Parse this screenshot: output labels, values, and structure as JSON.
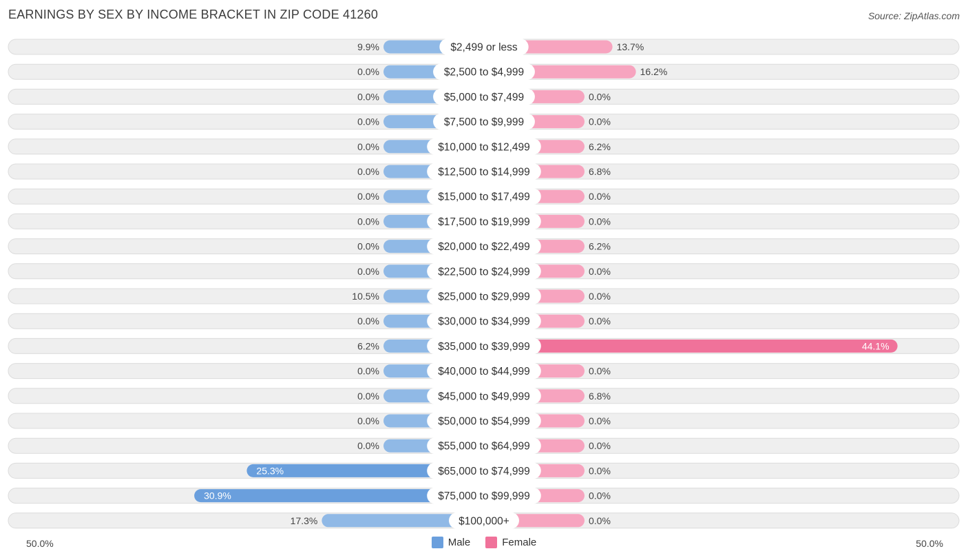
{
  "title": "EARNINGS BY SEX BY INCOME BRACKET IN ZIP CODE 41260",
  "source": "Source: ZipAtlas.com",
  "axis": {
    "left_label": "50.0%",
    "right_label": "50.0%",
    "max_percent": 50
  },
  "legend": {
    "male": "Male",
    "female": "Female"
  },
  "colors": {
    "male": "#90b9e6",
    "male_strong": "#6a9fdd",
    "female": "#f7a4bf",
    "female_strong": "#f0729a",
    "row_bg": "#efefef",
    "row_border": "#dcdcdc"
  },
  "chart_data": {
    "type": "bar",
    "orientation": "horizontal-diverging",
    "title": "EARNINGS BY SEX BY INCOME BRACKET IN ZIP CODE 41260",
    "xlim": [
      -50,
      50
    ],
    "categories": [
      "$2,499 or less",
      "$2,500 to $4,999",
      "$5,000 to $7,499",
      "$7,500 to $9,999",
      "$10,000 to $12,499",
      "$12,500 to $14,999",
      "$15,000 to $17,499",
      "$17,500 to $19,999",
      "$20,000 to $22,499",
      "$22,500 to $24,999",
      "$25,000 to $29,999",
      "$30,000 to $34,999",
      "$35,000 to $39,999",
      "$40,000 to $44,999",
      "$45,000 to $49,999",
      "$50,000 to $54,999",
      "$55,000 to $64,999",
      "$65,000 to $74,999",
      "$75,000 to $99,999",
      "$100,000+"
    ],
    "series": [
      {
        "name": "Male",
        "values": [
          9.9,
          0.0,
          0.0,
          0.0,
          0.0,
          0.0,
          0.0,
          0.0,
          0.0,
          0.0,
          10.5,
          0.0,
          6.2,
          0.0,
          0.0,
          0.0,
          0.0,
          25.3,
          30.9,
          17.3
        ],
        "labels": [
          "9.9%",
          "0.0%",
          "0.0%",
          "0.0%",
          "0.0%",
          "0.0%",
          "0.0%",
          "0.0%",
          "0.0%",
          "0.0%",
          "10.5%",
          "0.0%",
          "6.2%",
          "0.0%",
          "0.0%",
          "0.0%",
          "0.0%",
          "25.3%",
          "30.9%",
          "17.3%"
        ]
      },
      {
        "name": "Female",
        "values": [
          13.7,
          16.2,
          0.0,
          0.0,
          6.2,
          6.8,
          0.0,
          0.0,
          6.2,
          0.0,
          0.0,
          0.0,
          44.1,
          0.0,
          6.8,
          0.0,
          0.0,
          0.0,
          0.0,
          0.0
        ],
        "labels": [
          "13.7%",
          "16.2%",
          "0.0%",
          "0.0%",
          "6.2%",
          "6.8%",
          "0.0%",
          "0.0%",
          "6.2%",
          "0.0%",
          "0.0%",
          "0.0%",
          "44.1%",
          "0.0%",
          "6.8%",
          "0.0%",
          "0.0%",
          "0.0%",
          "0.0%",
          "0.0%"
        ]
      }
    ]
  }
}
